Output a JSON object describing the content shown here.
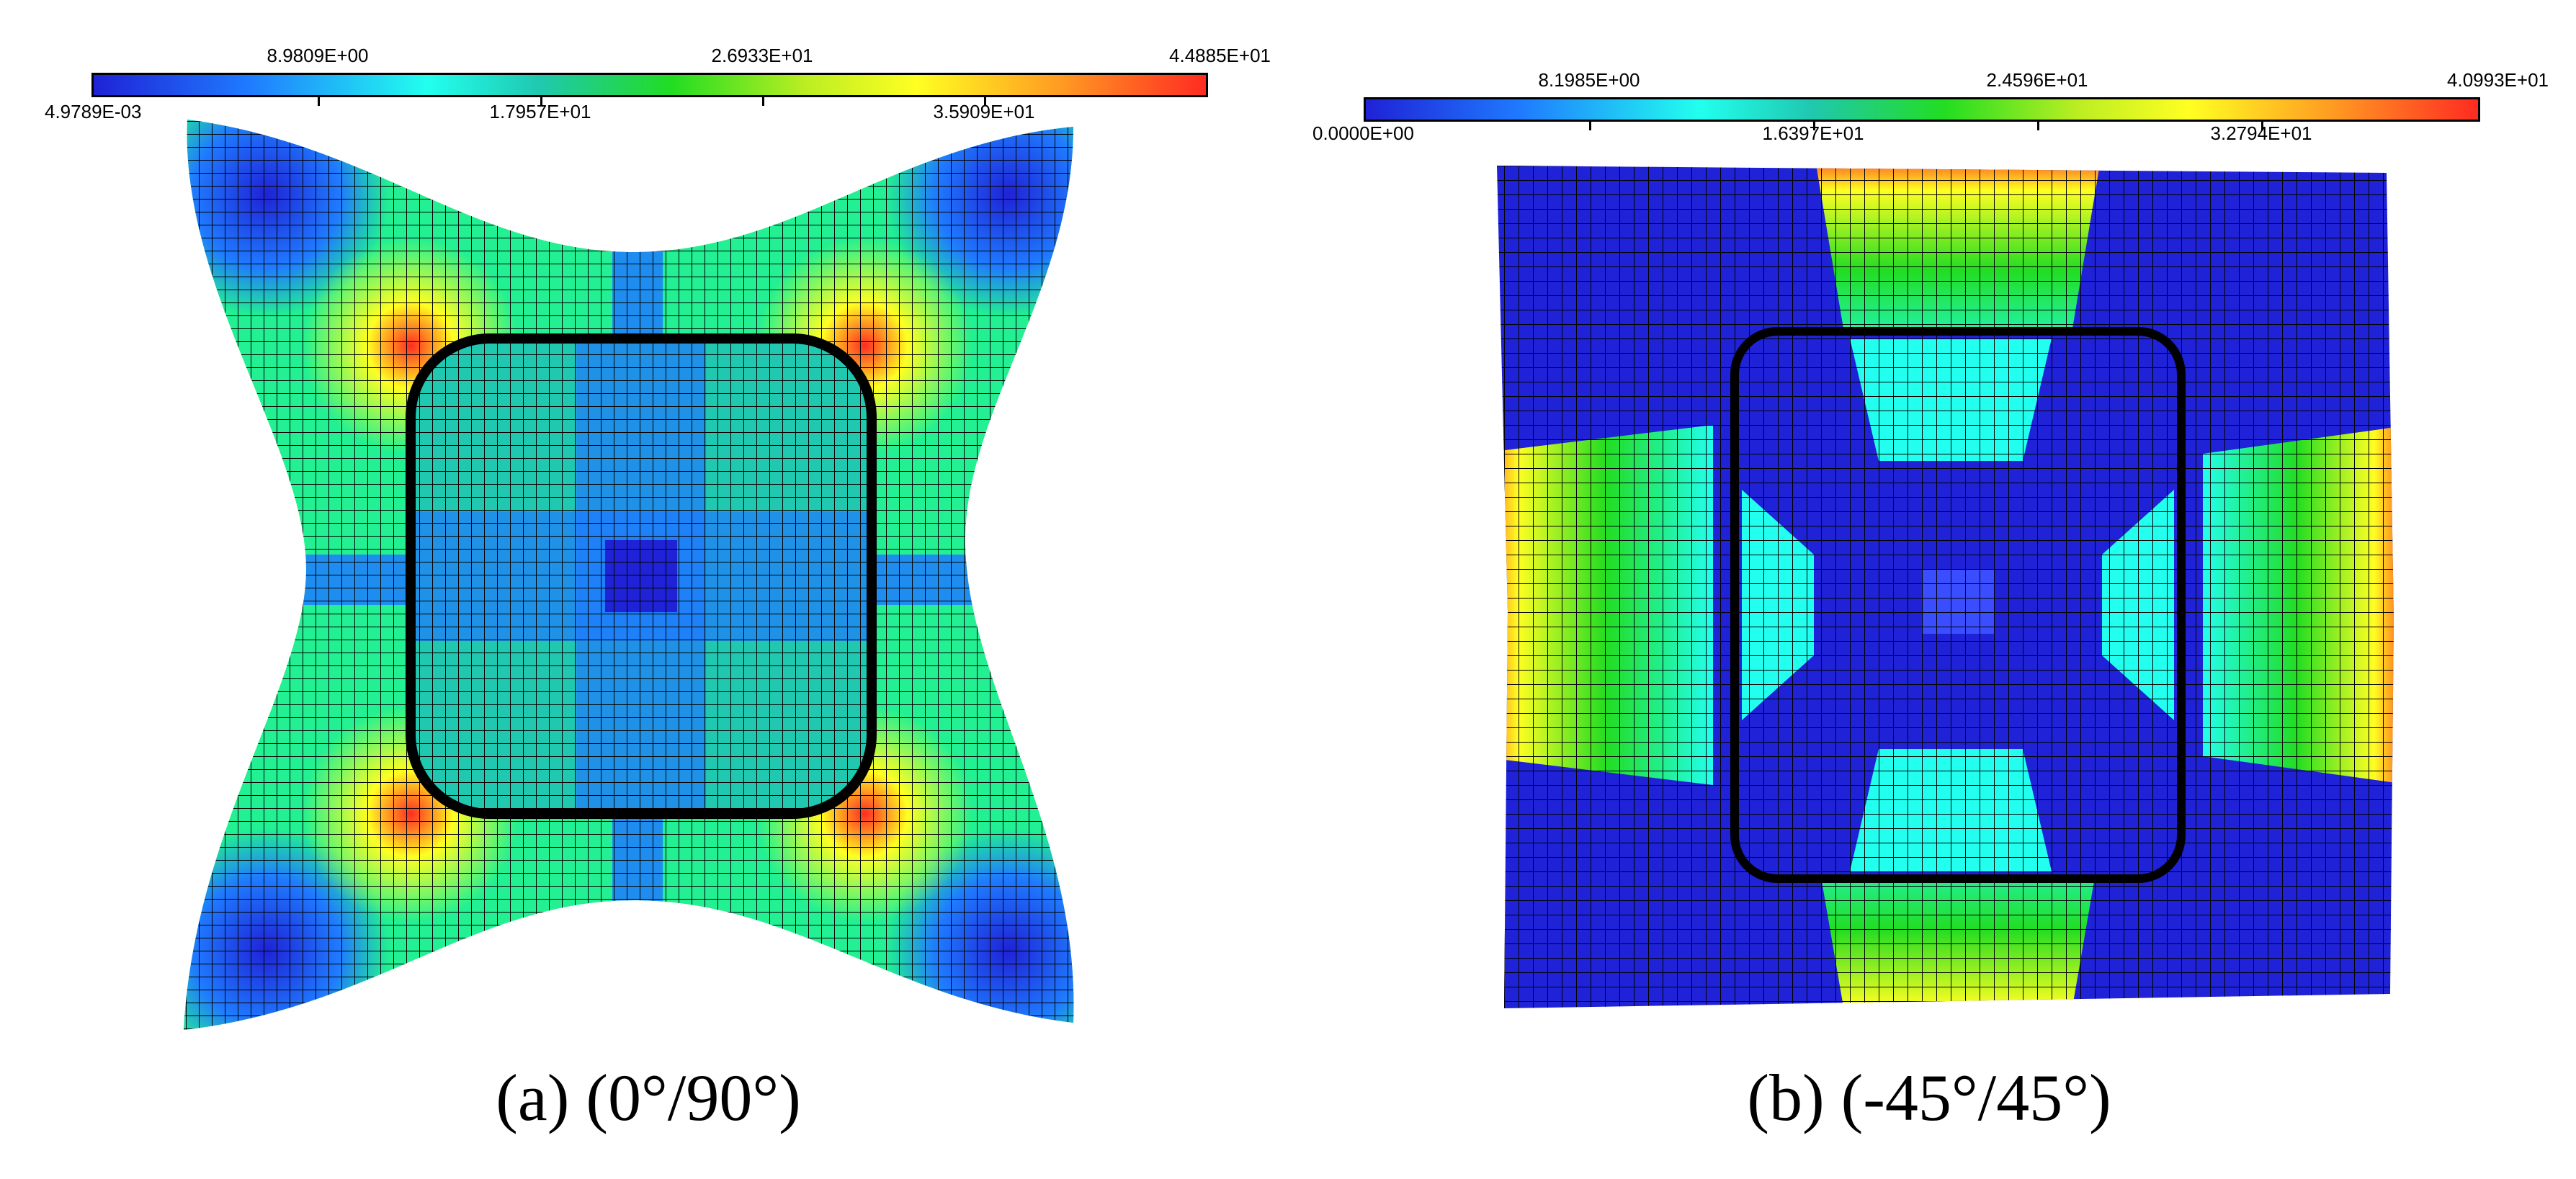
{
  "figure": {
    "panels": [
      {
        "id": "a",
        "caption": "(a) (0°/90°)",
        "colorbar": {
          "top_labels": [
            "8.9809E+00",
            "2.6933E+01",
            "4.4885E+01"
          ],
          "bottom_labels": [
            "4.9789E-03",
            "1.7957E+01",
            "3.5909E+01"
          ]
        }
      },
      {
        "id": "b",
        "caption": "(b) (-45°/45°)",
        "colorbar": {
          "top_labels": [
            "8.1985E+00",
            "2.4596E+01",
            "4.0993E+01"
          ],
          "bottom_labels": [
            "0.0000E+00",
            "1.6397E+01",
            "3.2794E+01"
          ]
        }
      }
    ],
    "colormap": [
      "#1f22d6",
      "#1f7bff",
      "#22ffee",
      "#20c8b0",
      "#22dd22",
      "#bbee22",
      "#ffff22",
      "#ff9a22",
      "#ff2b22"
    ]
  }
}
